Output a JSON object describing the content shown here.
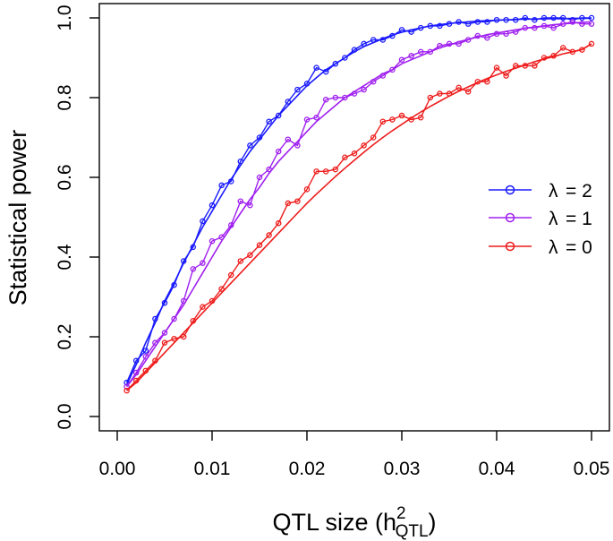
{
  "chart_data": {
    "type": "line",
    "title": "",
    "xlabel": {
      "prefix": "QTL size (h",
      "superscript": "2",
      "subscript": "QTL",
      "suffix": ")"
    },
    "ylabel": "Statistical power",
    "xlim": [
      0.0,
      0.05
    ],
    "ylim": [
      0.0,
      1.0
    ],
    "x_ticks": [
      0.0,
      0.01,
      0.02,
      0.03,
      0.04,
      0.05
    ],
    "x_tick_labels": [
      "0.00",
      "0.01",
      "0.02",
      "0.03",
      "0.04",
      "0.05"
    ],
    "y_ticks": [
      0.0,
      0.2,
      0.4,
      0.6,
      0.8,
      1.0
    ],
    "y_tick_labels": [
      "0.0",
      "0.2",
      "0.4",
      "0.6",
      "0.8",
      "1.0"
    ],
    "grid": false,
    "legend_position": "right",
    "x": [
      0.001,
      0.002,
      0.003,
      0.004,
      0.005,
      0.006,
      0.007,
      0.008,
      0.009,
      0.01,
      0.011,
      0.012,
      0.013,
      0.014,
      0.015,
      0.016,
      0.017,
      0.018,
      0.019,
      0.02,
      0.021,
      0.022,
      0.023,
      0.024,
      0.025,
      0.026,
      0.027,
      0.028,
      0.029,
      0.03,
      0.031,
      0.032,
      0.033,
      0.034,
      0.035,
      0.036,
      0.037,
      0.038,
      0.039,
      0.04,
      0.041,
      0.042,
      0.043,
      0.044,
      0.045,
      0.046,
      0.047,
      0.048,
      0.049,
      0.05
    ],
    "series": [
      {
        "name": "λ = 2",
        "legend_symbol": "λ",
        "legend_value": "= 2",
        "color": "#1a1aff",
        "values": [
          0.085,
          0.14,
          0.165,
          0.245,
          0.285,
          0.33,
          0.39,
          0.425,
          0.49,
          0.53,
          0.58,
          0.59,
          0.64,
          0.68,
          0.7,
          0.74,
          0.755,
          0.79,
          0.82,
          0.835,
          0.875,
          0.865,
          0.885,
          0.9,
          0.92,
          0.935,
          0.945,
          0.945,
          0.955,
          0.97,
          0.965,
          0.975,
          0.98,
          0.98,
          0.985,
          0.99,
          0.985,
          0.99,
          0.99,
          0.995,
          0.995,
          0.995,
          1.0,
          0.995,
          1.0,
          1.0,
          1.0,
          0.995,
          1.0,
          1.0
        ],
        "fit": [
          0.08,
          0.13,
          0.185,
          0.235,
          0.29,
          0.335,
          0.385,
          0.43,
          0.475,
          0.515,
          0.555,
          0.595,
          0.63,
          0.665,
          0.695,
          0.725,
          0.755,
          0.78,
          0.805,
          0.83,
          0.85,
          0.87,
          0.885,
          0.9,
          0.915,
          0.928,
          0.938,
          0.948,
          0.957,
          0.964,
          0.97,
          0.975,
          0.98,
          0.983,
          0.986,
          0.988,
          0.99,
          0.992,
          0.993,
          0.994,
          0.995,
          0.996,
          0.997,
          0.997,
          0.998,
          0.998,
          0.998,
          0.999,
          0.999,
          0.999
        ]
      },
      {
        "name": "λ = 1",
        "legend_symbol": "λ",
        "legend_value": "= 1",
        "color": "#a020f0",
        "values": [
          0.075,
          0.11,
          0.15,
          0.185,
          0.21,
          0.245,
          0.29,
          0.37,
          0.385,
          0.44,
          0.45,
          0.48,
          0.54,
          0.53,
          0.6,
          0.62,
          0.665,
          0.695,
          0.68,
          0.745,
          0.75,
          0.795,
          0.8,
          0.8,
          0.81,
          0.82,
          0.84,
          0.855,
          0.87,
          0.895,
          0.905,
          0.915,
          0.915,
          0.93,
          0.935,
          0.935,
          0.945,
          0.955,
          0.95,
          0.96,
          0.96,
          0.965,
          0.975,
          0.975,
          0.98,
          0.975,
          0.985,
          0.99,
          0.985,
          0.985
        ],
        "fit": [
          0.075,
          0.105,
          0.14,
          0.175,
          0.21,
          0.245,
          0.28,
          0.32,
          0.36,
          0.4,
          0.44,
          0.475,
          0.51,
          0.545,
          0.575,
          0.61,
          0.64,
          0.665,
          0.69,
          0.715,
          0.74,
          0.76,
          0.78,
          0.8,
          0.815,
          0.83,
          0.845,
          0.86,
          0.87,
          0.885,
          0.895,
          0.905,
          0.915,
          0.925,
          0.932,
          0.94,
          0.946,
          0.952,
          0.958,
          0.962,
          0.966,
          0.97,
          0.974,
          0.977,
          0.98,
          0.983,
          0.985,
          0.987,
          0.989,
          0.99
        ]
      },
      {
        "name": "λ = 0",
        "legend_symbol": "λ",
        "legend_value": "= 0",
        "color": "#ee1c1c",
        "values": [
          0.065,
          0.09,
          0.115,
          0.14,
          0.185,
          0.195,
          0.2,
          0.24,
          0.275,
          0.29,
          0.32,
          0.355,
          0.39,
          0.405,
          0.43,
          0.455,
          0.485,
          0.535,
          0.54,
          0.57,
          0.615,
          0.615,
          0.62,
          0.65,
          0.66,
          0.68,
          0.7,
          0.74,
          0.745,
          0.755,
          0.745,
          0.75,
          0.8,
          0.81,
          0.81,
          0.825,
          0.815,
          0.84,
          0.84,
          0.875,
          0.855,
          0.88,
          0.88,
          0.88,
          0.9,
          0.905,
          0.925,
          0.915,
          0.92,
          0.935
        ],
        "fit": [
          0.065,
          0.085,
          0.11,
          0.135,
          0.16,
          0.185,
          0.21,
          0.235,
          0.26,
          0.285,
          0.31,
          0.335,
          0.36,
          0.385,
          0.41,
          0.435,
          0.46,
          0.485,
          0.51,
          0.535,
          0.558,
          0.58,
          0.602,
          0.623,
          0.643,
          0.663,
          0.682,
          0.7,
          0.717,
          0.733,
          0.749,
          0.764,
          0.778,
          0.791,
          0.804,
          0.816,
          0.827,
          0.838,
          0.848,
          0.857,
          0.866,
          0.874,
          0.882,
          0.89,
          0.897,
          0.903,
          0.91,
          0.915,
          0.921,
          0.935
        ]
      }
    ]
  }
}
